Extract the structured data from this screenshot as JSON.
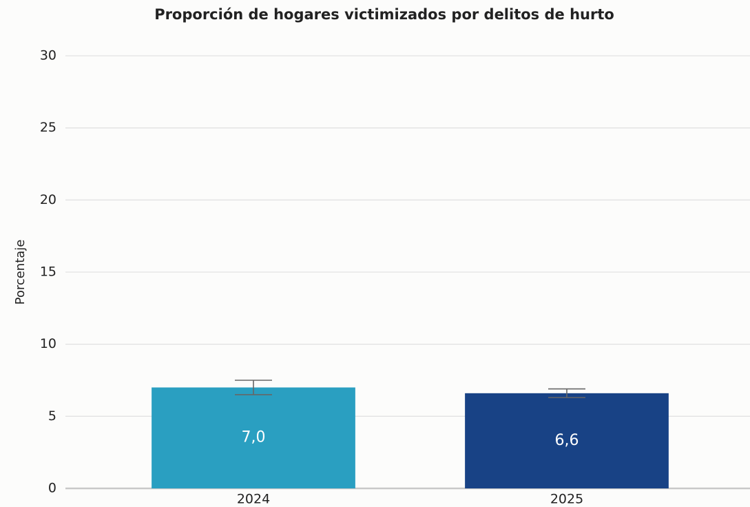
{
  "chart_data": {
    "type": "bar",
    "title": "Proporción de hogares victimizados por delitos de hurto",
    "y_label": "Porcentaje",
    "categories": [
      "2024",
      "2025"
    ],
    "values": [
      7.0,
      6.6
    ],
    "value_labels": [
      "7,0",
      "6,6"
    ],
    "errors": [
      0.5,
      0.3
    ],
    "colors": [
      "#2a9fc1",
      "#184285"
    ],
    "ylim": [
      0,
      30
    ],
    "yticks": [
      0,
      5,
      10,
      15,
      20,
      25,
      30
    ],
    "grid": true
  }
}
